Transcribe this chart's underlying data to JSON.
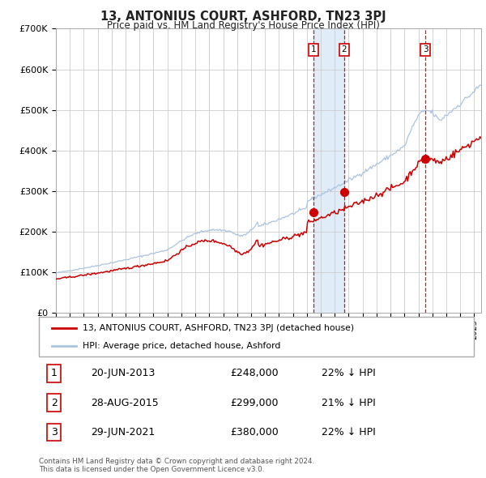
{
  "title": "13, ANTONIUS COURT, ASHFORD, TN23 3PJ",
  "subtitle": "Price paid vs. HM Land Registry's House Price Index (HPI)",
  "title_color": "#222222",
  "background_color": "#ffffff",
  "plot_bg_color": "#ffffff",
  "grid_color": "#cccccc",
  "hpi_line_color": "#aac4e0",
  "price_line_color": "#cc0000",
  "marker_color": "#cc0000",
  "vline_color": "#cc0000",
  "shade_color": "#d6e8f7",
  "ylim": [
    0,
    700000
  ],
  "ytick_labels": [
    "£0",
    "£100K",
    "£200K",
    "£300K",
    "£400K",
    "£500K",
    "£600K",
    "£700K"
  ],
  "ytick_values": [
    0,
    100000,
    200000,
    300000,
    400000,
    500000,
    600000,
    700000
  ],
  "x_start_year": 1995,
  "x_end_year": 2025,
  "transactions": [
    {
      "label": "1",
      "date_dec": 2013.47,
      "price": 248000
    },
    {
      "label": "2",
      "date_dec": 2015.66,
      "price": 299000
    },
    {
      "label": "3",
      "date_dec": 2021.49,
      "price": 380000
    }
  ],
  "legend_entries": [
    "13, ANTONIUS COURT, ASHFORD, TN23 3PJ (detached house)",
    "HPI: Average price, detached house, Ashford"
  ],
  "table_rows": [
    [
      "1",
      "20-JUN-2013",
      "£248,000",
      "22% ↓ HPI"
    ],
    [
      "2",
      "28-AUG-2015",
      "£299,000",
      "21% ↓ HPI"
    ],
    [
      "3",
      "29-JUN-2021",
      "£380,000",
      "22% ↓ HPI"
    ]
  ],
  "footer": "Contains HM Land Registry data © Crown copyright and database right 2024.\nThis data is licensed under the Open Government Licence v3.0."
}
